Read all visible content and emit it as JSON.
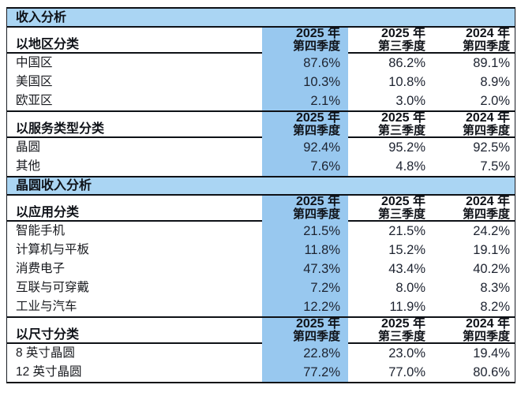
{
  "colors": {
    "section_band_bg": "#aad5f3",
    "highlight_column_bg": "#98c8ef",
    "grid_line": "#0e1116",
    "text": "#15171c"
  },
  "sections": [
    {
      "title": "收入分析",
      "tables": [
        {
          "group_header": "以地区分类",
          "columns": [
            {
              "year": "2025 年",
              "period": "第四季度",
              "highlighted": true
            },
            {
              "year": "2025 年",
              "period": "第三季度",
              "highlighted": false
            },
            {
              "year": "2024 年",
              "period": "第四季度",
              "highlighted": false
            }
          ],
          "rows": [
            {
              "label": "中国区",
              "values": [
                "87.6%",
                "86.2%",
                "89.1%"
              ]
            },
            {
              "label": "美国区",
              "values": [
                "10.3%",
                "10.8%",
                "8.9%"
              ]
            },
            {
              "label": "欧亚区",
              "values": [
                "2.1%",
                "3.0%",
                "2.0%"
              ]
            }
          ]
        },
        {
          "group_header": "以服务类型分类",
          "columns": [
            {
              "year": "2025 年",
              "period": "第四季度",
              "highlighted": true
            },
            {
              "year": "2025 年",
              "period": "第三季度",
              "highlighted": false
            },
            {
              "year": "2024 年",
              "period": "第四季度",
              "highlighted": false
            }
          ],
          "rows": [
            {
              "label": "晶圆",
              "values": [
                "92.4%",
                "95.2%",
                "92.5%"
              ]
            },
            {
              "label": "其他",
              "values": [
                "7.6%",
                "4.8%",
                "7.5%"
              ]
            }
          ]
        }
      ]
    },
    {
      "title": "晶圆收入分析",
      "tables": [
        {
          "group_header": "以应用分类",
          "columns": [
            {
              "year": "2025 年",
              "period": "第四季度",
              "highlighted": true
            },
            {
              "year": "2025 年",
              "period": "第三季度",
              "highlighted": false
            },
            {
              "year": "2024 年",
              "period": "第四季度",
              "highlighted": false
            }
          ],
          "rows": [
            {
              "label": "智能手机",
              "values": [
                "21.5%",
                "21.5%",
                "24.2%"
              ]
            },
            {
              "label": "计算机与平板",
              "values": [
                "11.8%",
                "15.2%",
                "19.1%"
              ]
            },
            {
              "label": "消费电子",
              "values": [
                "47.3%",
                "43.4%",
                "40.2%"
              ]
            },
            {
              "label": "互联与可穿戴",
              "values": [
                "7.2%",
                "8.0%",
                "8.3%"
              ]
            },
            {
              "label": "工业与汽车",
              "values": [
                "12.2%",
                "11.9%",
                "8.2%"
              ]
            }
          ]
        },
        {
          "group_header": "以尺寸分类",
          "columns": [
            {
              "year": "2025 年",
              "period": "第四季度",
              "highlighted": true
            },
            {
              "year": "2025 年",
              "period": "第三季度",
              "highlighted": false
            },
            {
              "year": "2024 年",
              "period": "第四季度",
              "highlighted": false
            }
          ],
          "rows": [
            {
              "label": "8 英寸晶圆",
              "values": [
                "22.8%",
                "23.0%",
                "19.4%"
              ]
            },
            {
              "label": "12 英寸晶圆",
              "values": [
                "77.2%",
                "77.0%",
                "80.6%"
              ]
            }
          ]
        }
      ]
    }
  ],
  "chart_data": {
    "type": "table",
    "unit": "%",
    "column_headers": [
      "2025年第四季度",
      "2025年第三季度",
      "2024年第四季度"
    ],
    "highlighted_column": "2025年第四季度",
    "groups": [
      {
        "section": "收入分析",
        "group": "以地区分类",
        "rows": [
          [
            "中国区",
            87.6,
            86.2,
            89.1
          ],
          [
            "美国区",
            10.3,
            10.8,
            8.9
          ],
          [
            "欧亚区",
            2.1,
            3.0,
            2.0
          ]
        ]
      },
      {
        "section": "收入分析",
        "group": "以服务类型分类",
        "rows": [
          [
            "晶圆",
            92.4,
            95.2,
            92.5
          ],
          [
            "其他",
            7.6,
            4.8,
            7.5
          ]
        ]
      },
      {
        "section": "晶圆收入分析",
        "group": "以应用分类",
        "rows": [
          [
            "智能手机",
            21.5,
            21.5,
            24.2
          ],
          [
            "计算机与平板",
            11.8,
            15.2,
            19.1
          ],
          [
            "消费电子",
            47.3,
            43.4,
            40.2
          ],
          [
            "互联与可穿戴",
            7.2,
            8.0,
            8.3
          ],
          [
            "工业与汽车",
            12.2,
            11.9,
            8.2
          ]
        ]
      },
      {
        "section": "晶圆收入分析",
        "group": "以尺寸分类",
        "rows": [
          [
            "8英寸晶圆",
            22.8,
            23.0,
            19.4
          ],
          [
            "12英寸晶圆",
            77.2,
            77.0,
            80.6
          ]
        ]
      }
    ]
  }
}
